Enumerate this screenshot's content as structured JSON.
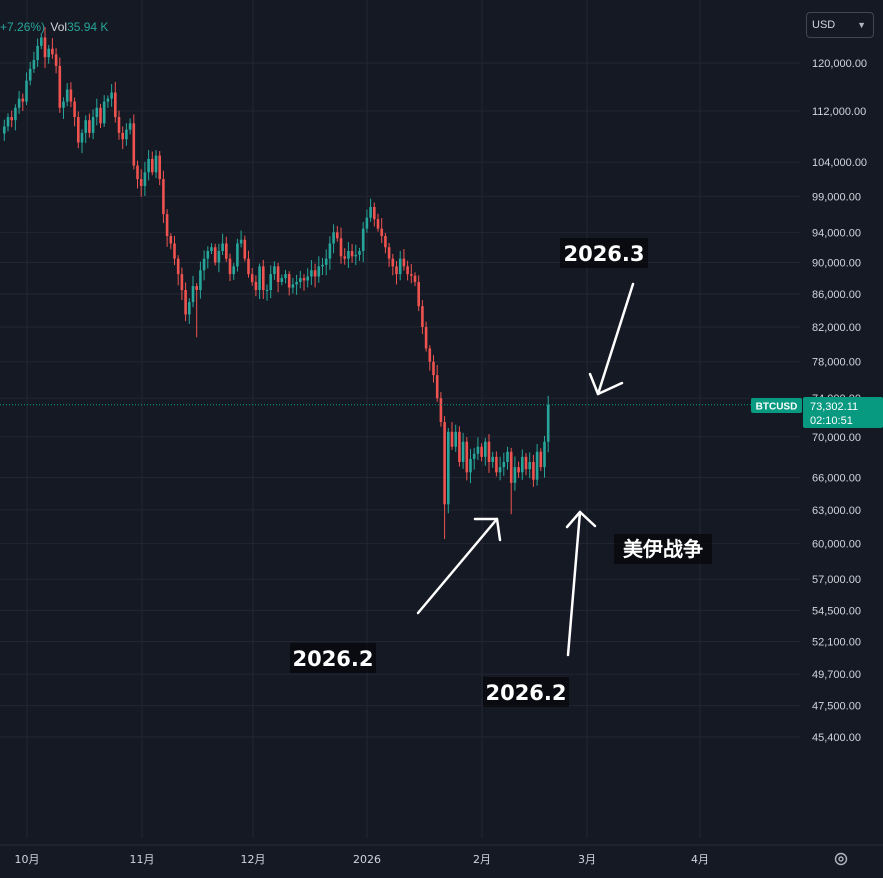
{
  "header": {
    "change_pct": "+7.26%)",
    "vol_label": "Vol",
    "vol_value": "35.94 K"
  },
  "currency_selector": {
    "value": "USD"
  },
  "icons": {
    "currency_dropdown": "chevron-down-icon",
    "settings": "gear-icon"
  },
  "colors": {
    "up": "#26a69a",
    "down": "#ef5350",
    "background": "#151924",
    "grid": "#232632",
    "axis_text": "#d1d4dc",
    "price_tag": "#089981",
    "annotation": "#ffffff"
  },
  "price_tag": {
    "symbol": "BTCUSD",
    "price": "73,302.11",
    "countdown": "02:10:51"
  },
  "annotations": [
    {
      "text": "2026.3"
    },
    {
      "text": "2026.2"
    },
    {
      "text": "2026.2"
    },
    {
      "text": "美伊战争"
    }
  ],
  "chart_data": {
    "type": "candlestick",
    "symbol": "BTCUSD",
    "y_axis_labels": [
      "120,000.00",
      "112,000.00",
      "104,000.00",
      "99,000.00",
      "94,000.00",
      "90,000.00",
      "86,000.00",
      "82,000.00",
      "78,000.00",
      "74,000.00",
      "70,000.00",
      "66,000.00",
      "63,000.00",
      "60,000.00",
      "57,000.00",
      "54,500.00",
      "52,100.00",
      "49,700.00",
      "47,500.00",
      "45,400.00"
    ],
    "y_axis_scale": "log",
    "x_axis_labels": [
      "10月",
      "11月",
      "12月",
      "2026",
      "2月",
      "3月",
      "4月"
    ],
    "last_price": 73302.11,
    "series": [
      {
        "name": "BTCUSD",
        "closes": [
          109500,
          111000,
          110500,
          112500,
          114000,
          113500,
          117000,
          119000,
          120500,
          123000,
          124500,
          121000,
          122500,
          121500,
          119500,
          112500,
          113500,
          115500,
          113500,
          111000,
          107000,
          108500,
          110500,
          108500,
          111000,
          112500,
          110000,
          113500,
          114000,
          115000,
          111000,
          108500,
          107500,
          109000,
          110000,
          103500,
          101500,
          100500,
          102500,
          104500,
          102500,
          105000,
          101500,
          96500,
          93500,
          92500,
          90500,
          88500,
          86500,
          83500,
          85000,
          87000,
          86500,
          89000,
          90500,
          91500,
          92000,
          90000,
          91500,
          92500,
          90500,
          88500,
          89500,
          92500,
          93000,
          90500,
          88500,
          87500,
          86500,
          89500,
          86500,
          86500,
          88500,
          89500,
          87500,
          88000,
          88500,
          86800,
          87200,
          87500,
          88000,
          87700,
          88200,
          89000,
          88200,
          89500,
          89700,
          90500,
          92500,
          94000,
          93200,
          90800,
          90500,
          91500,
          90800,
          91000,
          91500,
          94500,
          96000,
          97500,
          95800,
          94500,
          93500,
          92000,
          90500,
          89500,
          88500,
          90500,
          89500,
          88500,
          88300,
          87500,
          84500,
          82000,
          79500,
          78000,
          76500,
          74000,
          71500,
          63500,
          70500,
          69000,
          70500,
          67500,
          69500,
          66500,
          67800,
          68300,
          69000,
          68000,
          69500,
          67500,
          68000,
          66500,
          67000,
          67500,
          68500,
          65500,
          67000,
          66500,
          68000,
          66800,
          67500,
          65800,
          68500,
          67000,
          69500,
          73302
        ]
      }
    ]
  }
}
